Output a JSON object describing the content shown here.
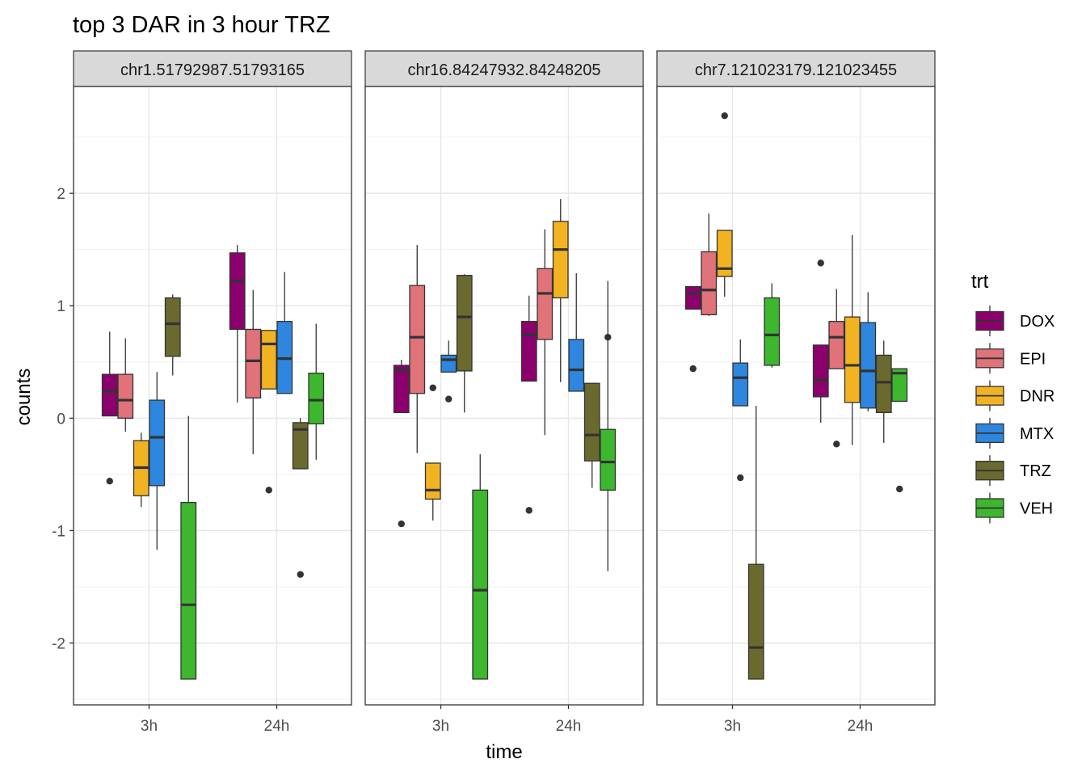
{
  "chart_data": {
    "type": "boxplot",
    "title": "top 3 DAR in 3 hour TRZ",
    "xlabel": "time",
    "ylabel": "counts",
    "ylim": [
      -2.55,
      2.95
    ],
    "y_ticks": [
      -2,
      -1,
      0,
      1,
      2
    ],
    "y_tick_labels": [
      "-2",
      "-1",
      "0",
      "1",
      "2"
    ],
    "categories": [
      "3h",
      "24h"
    ],
    "legend": {
      "title": "trt",
      "position": "right",
      "entries": [
        "DOX",
        "EPI",
        "DNR",
        "MTX",
        "TRZ",
        "VEH"
      ],
      "colors": [
        "#8B006D",
        "#E0727A",
        "#F2B323",
        "#2E86DE",
        "#6B6A2E",
        "#3CB72E"
      ]
    },
    "panels": [
      {
        "label": "chr1.51792987.51793165",
        "groups": {
          "3h": [
            {
              "trt": "DOX",
              "whisker_low": 0.02,
              "q1": 0.02,
              "median": 0.24,
              "q3": 0.39,
              "whisker_high": 0.77,
              "outliers": [
                -0.56
              ]
            },
            {
              "trt": "EPI",
              "whisker_low": -0.12,
              "q1": 0.0,
              "median": 0.16,
              "q3": 0.39,
              "whisker_high": 0.71,
              "outliers": []
            },
            {
              "trt": "DNR",
              "whisker_low": -0.79,
              "q1": -0.69,
              "median": -0.44,
              "q3": -0.2,
              "whisker_high": -0.13,
              "outliers": []
            },
            {
              "trt": "MTX",
              "whisker_low": -1.17,
              "q1": -0.6,
              "median": -0.17,
              "q3": 0.16,
              "whisker_high": 0.41,
              "outliers": []
            },
            {
              "trt": "TRZ",
              "whisker_low": 0.38,
              "q1": 0.55,
              "median": 0.84,
              "q3": 1.07,
              "whisker_high": 1.1,
              "outliers": []
            },
            {
              "trt": "VEH",
              "whisker_low": -2.32,
              "q1": -2.32,
              "median": -1.66,
              "q3": -0.75,
              "whisker_high": 0.02,
              "outliers": []
            }
          ],
          "24h": [
            {
              "trt": "DOX",
              "whisker_low": 0.14,
              "q1": 0.79,
              "median": 1.22,
              "q3": 1.47,
              "whisker_high": 1.54,
              "outliers": []
            },
            {
              "trt": "EPI",
              "whisker_low": -0.32,
              "q1": 0.18,
              "median": 0.51,
              "q3": 0.79,
              "whisker_high": 1.14,
              "outliers": []
            },
            {
              "trt": "DNR",
              "whisker_low": 0.26,
              "q1": 0.26,
              "median": 0.66,
              "q3": 0.78,
              "whisker_high": 0.78,
              "outliers": [
                -0.64
              ]
            },
            {
              "trt": "MTX",
              "whisker_low": 0.22,
              "q1": 0.22,
              "median": 0.53,
              "q3": 0.86,
              "whisker_high": 1.3,
              "outliers": []
            },
            {
              "trt": "TRZ",
              "whisker_low": -0.45,
              "q1": -0.45,
              "median": -0.1,
              "q3": -0.04,
              "whisker_high": 0.0,
              "outliers": [
                -1.39
              ]
            },
            {
              "trt": "VEH",
              "whisker_low": -0.37,
              "q1": -0.05,
              "median": 0.16,
              "q3": 0.4,
              "whisker_high": 0.84,
              "outliers": []
            }
          ]
        }
      },
      {
        "label": "chr16.84247932.84248205",
        "groups": {
          "3h": [
            {
              "trt": "DOX",
              "whisker_low": 0.05,
              "q1": 0.05,
              "median": 0.43,
              "q3": 0.47,
              "whisker_high": 0.52,
              "outliers": [
                -0.94
              ]
            },
            {
              "trt": "EPI",
              "whisker_low": -0.31,
              "q1": 0.22,
              "median": 0.72,
              "q3": 1.18,
              "whisker_high": 1.54,
              "outliers": []
            },
            {
              "trt": "DNR",
              "whisker_low": -0.91,
              "q1": -0.72,
              "median": -0.64,
              "q3": -0.4,
              "whisker_high": -0.4,
              "outliers": [
                0.27
              ]
            },
            {
              "trt": "MTX",
              "whisker_low": 0.41,
              "q1": 0.41,
              "median": 0.52,
              "q3": 0.56,
              "whisker_high": 0.69,
              "outliers": [
                0.17
              ]
            },
            {
              "trt": "TRZ",
              "whisker_low": 0.05,
              "q1": 0.42,
              "median": 0.9,
              "q3": 1.27,
              "whisker_high": 1.28,
              "outliers": []
            },
            {
              "trt": "VEH",
              "whisker_low": -2.32,
              "q1": -2.32,
              "median": -1.53,
              "q3": -0.64,
              "whisker_high": -0.32,
              "outliers": []
            }
          ],
          "24h": [
            {
              "trt": "DOX",
              "whisker_low": 0.33,
              "q1": 0.33,
              "median": 0.74,
              "q3": 0.86,
              "whisker_high": 1.09,
              "outliers": [
                -0.82
              ]
            },
            {
              "trt": "EPI",
              "whisker_low": -0.15,
              "q1": 0.7,
              "median": 1.11,
              "q3": 1.33,
              "whisker_high": 1.68,
              "outliers": []
            },
            {
              "trt": "DNR",
              "whisker_low": 0.32,
              "q1": 1.07,
              "median": 1.5,
              "q3": 1.75,
              "whisker_high": 1.95,
              "outliers": []
            },
            {
              "trt": "MTX",
              "whisker_low": 0.24,
              "q1": 0.24,
              "median": 0.43,
              "q3": 0.7,
              "whisker_high": 1.29,
              "outliers": []
            },
            {
              "trt": "TRZ",
              "whisker_low": -0.62,
              "q1": -0.38,
              "median": -0.15,
              "q3": 0.31,
              "whisker_high": 0.31,
              "outliers": []
            },
            {
              "trt": "VEH",
              "whisker_low": -1.36,
              "q1": -0.64,
              "median": -0.39,
              "q3": -0.1,
              "whisker_high": 1.22,
              "outliers": [
                0.72
              ]
            }
          ]
        }
      },
      {
        "label": "chr7.121023179.121023455",
        "groups": {
          "3h": [
            {
              "trt": "DOX",
              "whisker_low": 0.97,
              "q1": 0.97,
              "median": 1.11,
              "q3": 1.17,
              "whisker_high": 1.17,
              "outliers": [
                0.44
              ]
            },
            {
              "trt": "EPI",
              "whisker_low": 0.91,
              "q1": 0.92,
              "median": 1.14,
              "q3": 1.48,
              "whisker_high": 1.82,
              "outliers": []
            },
            {
              "trt": "DNR",
              "whisker_low": 1.08,
              "q1": 1.26,
              "median": 1.33,
              "q3": 1.67,
              "whisker_high": 1.67,
              "outliers": [
                2.69
              ]
            },
            {
              "trt": "MTX",
              "whisker_low": 0.11,
              "q1": 0.11,
              "median": 0.36,
              "q3": 0.49,
              "whisker_high": 0.7,
              "outliers": [
                -0.53
              ]
            },
            {
              "trt": "TRZ",
              "whisker_low": -2.32,
              "q1": -2.32,
              "median": -2.04,
              "q3": -1.3,
              "whisker_high": 0.11,
              "outliers": []
            },
            {
              "trt": "VEH",
              "whisker_low": 0.45,
              "q1": 0.47,
              "median": 0.74,
              "q3": 1.07,
              "whisker_high": 1.2,
              "outliers": []
            }
          ],
          "24h": [
            {
              "trt": "DOX",
              "whisker_low": -0.04,
              "q1": 0.19,
              "median": 0.34,
              "q3": 0.65,
              "whisker_high": 0.65,
              "outliers": [
                1.38
              ]
            },
            {
              "trt": "EPI",
              "whisker_low": 0.44,
              "q1": 0.44,
              "median": 0.72,
              "q3": 0.86,
              "whisker_high": 1.15,
              "outliers": [
                -0.23
              ]
            },
            {
              "trt": "DNR",
              "whisker_low": -0.24,
              "q1": 0.14,
              "median": 0.47,
              "q3": 0.9,
              "whisker_high": 1.63,
              "outliers": []
            },
            {
              "trt": "MTX",
              "whisker_low": 0.06,
              "q1": 0.09,
              "median": 0.42,
              "q3": 0.85,
              "whisker_high": 1.12,
              "outliers": []
            },
            {
              "trt": "TRZ",
              "whisker_low": -0.22,
              "q1": 0.05,
              "median": 0.32,
              "q3": 0.56,
              "whisker_high": 0.69,
              "outliers": []
            },
            {
              "trt": "VEH",
              "whisker_low": 0.15,
              "q1": 0.15,
              "median": 0.4,
              "q3": 0.44,
              "whisker_high": 0.44,
              "outliers": [
                -0.63
              ]
            }
          ]
        }
      }
    ]
  }
}
